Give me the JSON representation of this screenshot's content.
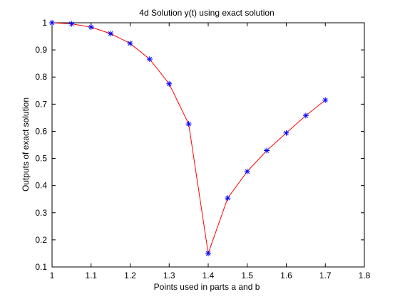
{
  "chart_data": {
    "type": "line",
    "title": "4d Solution y(t) using exact solution",
    "xlabel": "Points used in parts a and b",
    "ylabel": "Outputs of exact solution",
    "xlim": [
      1,
      1.8
    ],
    "ylim": [
      0.1,
      1
    ],
    "xticks": [
      1,
      1.1,
      1.2,
      1.3,
      1.4,
      1.5,
      1.6,
      1.7,
      1.8
    ],
    "yticks": [
      0.1,
      0.2,
      0.3,
      0.4,
      0.5,
      0.6,
      0.7,
      0.8,
      0.9,
      1
    ],
    "xtick_labels": [
      "1",
      "1.1",
      "1.2",
      "1.3",
      "1.4",
      "1.5",
      "1.6",
      "1.7",
      "1.8"
    ],
    "ytick_labels": [
      "0.1",
      "0.2",
      "0.3",
      "0.4",
      "0.5",
      "0.6",
      "0.7",
      "0.8",
      "0.9",
      "1"
    ],
    "grid": false,
    "series": [
      {
        "line_color": "#ff0000",
        "marker": "asterisk",
        "marker_color": "#0000ff",
        "x": [
          1,
          1.05,
          1.1,
          1.15,
          1.2,
          1.25,
          1.3,
          1.35,
          1.4,
          1.45,
          1.5,
          1.55,
          1.6,
          1.65,
          1.7
        ],
        "y": [
          1.0,
          0.996,
          0.984,
          0.96,
          0.924,
          0.866,
          0.775,
          0.627,
          0.15,
          0.354,
          0.452,
          0.529,
          0.594,
          0.658,
          0.715
        ]
      }
    ]
  }
}
